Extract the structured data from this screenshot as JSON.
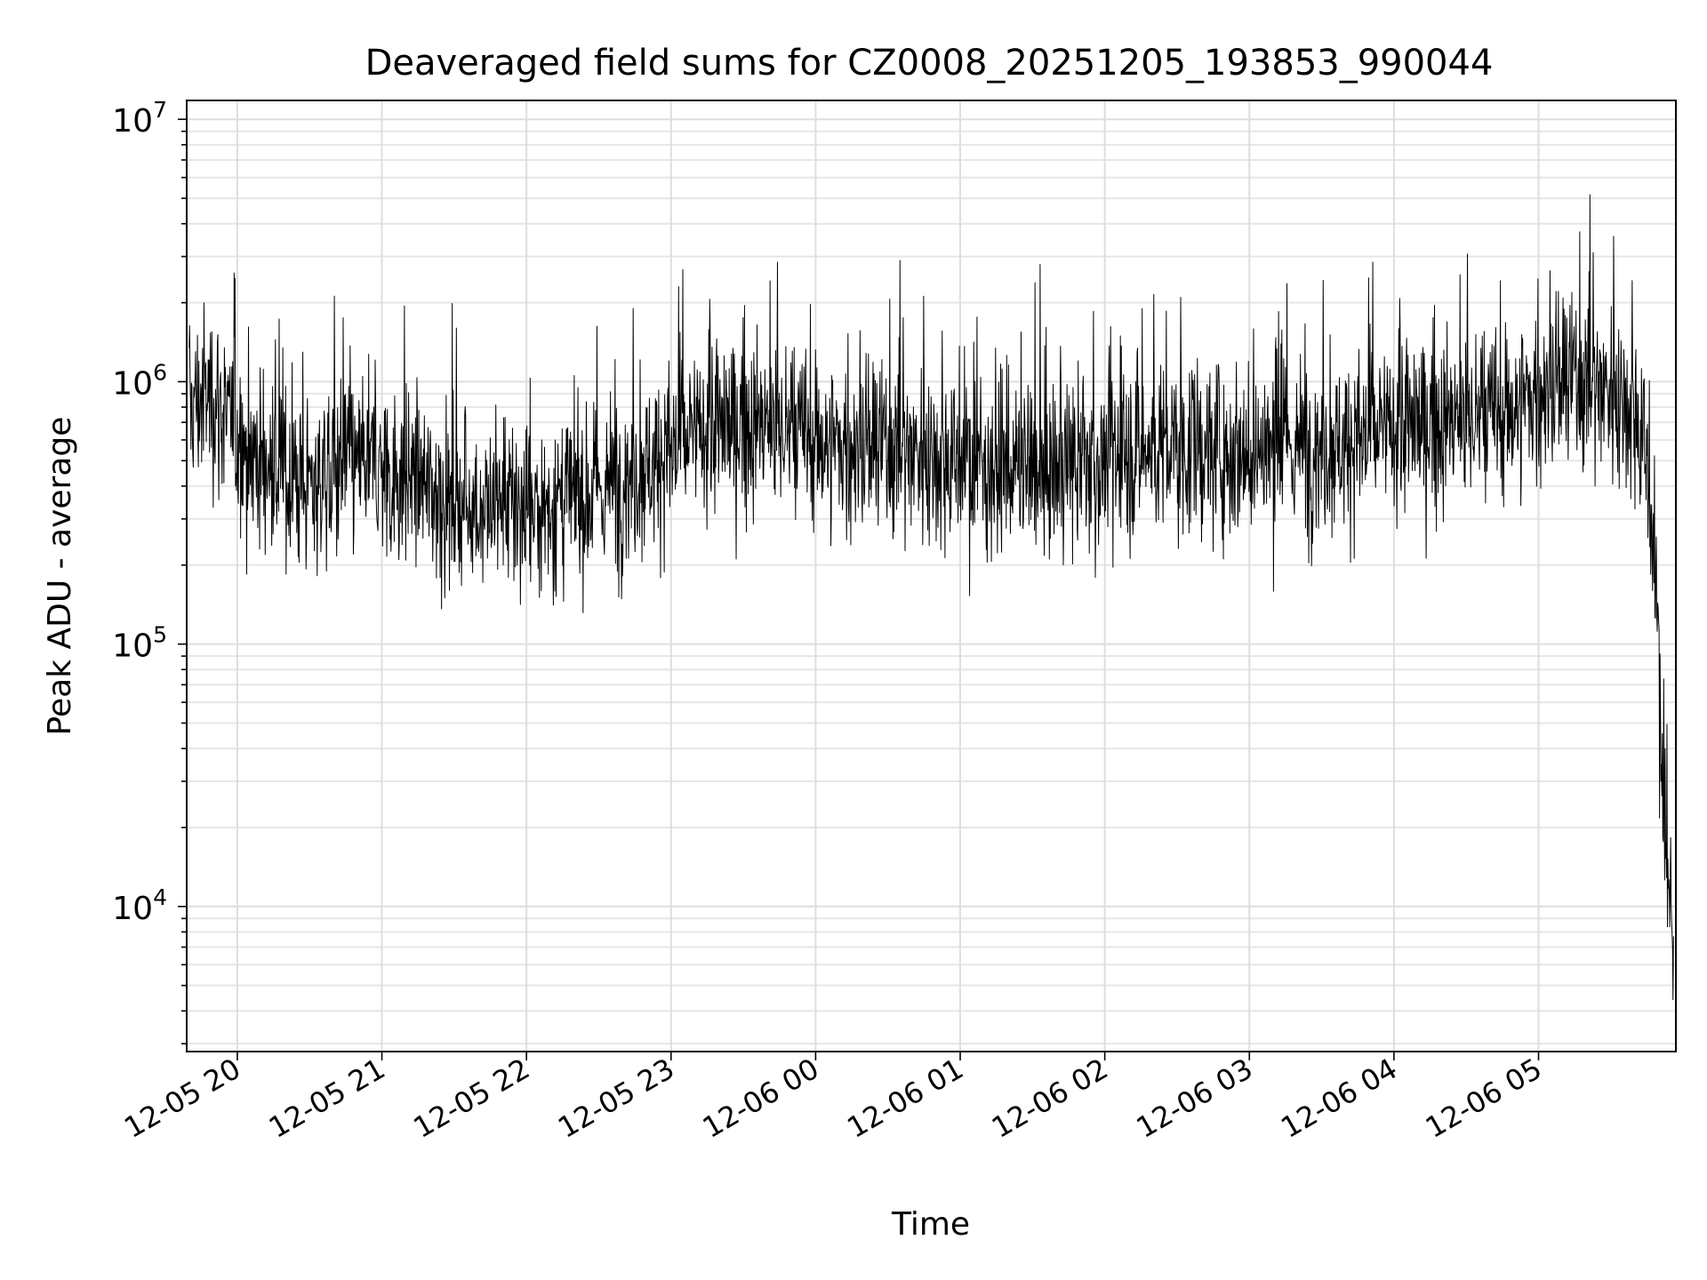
{
  "chart_data": {
    "type": "line",
    "title": "Deaveraged field sums for CZ0008_20251205_193853_990044",
    "xlabel": "Time",
    "ylabel": "Peak ADU - average",
    "yscale": "log",
    "ylim": [
      2800,
      11800000
    ],
    "xlim": [
      "2025-12-05 19:39",
      "2025-12-06 05:57"
    ],
    "grid": true,
    "line_color": "#000000",
    "x_ticks": [
      {
        "time": "2025-12-05 20:00",
        "label": "12-05 20"
      },
      {
        "time": "2025-12-05 21:00",
        "label": "12-05 21"
      },
      {
        "time": "2025-12-05 22:00",
        "label": "12-05 22"
      },
      {
        "time": "2025-12-05 23:00",
        "label": "12-05 23"
      },
      {
        "time": "2025-12-06 00:00",
        "label": "12-06 00"
      },
      {
        "time": "2025-12-06 01:00",
        "label": "12-06 01"
      },
      {
        "time": "2025-12-06 02:00",
        "label": "12-06 02"
      },
      {
        "time": "2025-12-06 03:00",
        "label": "12-06 03"
      },
      {
        "time": "2025-12-06 04:00",
        "label": "12-06 04"
      },
      {
        "time": "2025-12-06 05:00",
        "label": "12-06 05"
      }
    ],
    "y_ticks": [
      {
        "value": 10000,
        "base": "10",
        "exp": "4"
      },
      {
        "value": 100000,
        "base": "10",
        "exp": "5"
      },
      {
        "value": 1000000,
        "base": "10",
        "exp": "6"
      },
      {
        "value": 10000000,
        "base": "10",
        "exp": "7"
      }
    ],
    "series": [
      {
        "x": [
          "2025-12-05 19:40",
          "2025-12-05 19:50",
          "2025-12-05 20:00",
          "2025-12-05 20:15",
          "2025-12-05 20:30",
          "2025-12-05 20:45",
          "2025-12-05 21:00",
          "2025-12-05 21:15",
          "2025-12-05 21:30",
          "2025-12-05 21:45",
          "2025-12-05 22:00",
          "2025-12-05 22:15",
          "2025-12-05 22:30",
          "2025-12-05 22:45",
          "2025-12-05 23:00",
          "2025-12-05 23:15",
          "2025-12-05 23:30",
          "2025-12-05 23:45",
          "2025-12-06 00:00",
          "2025-12-06 00:15",
          "2025-12-06 00:30",
          "2025-12-06 00:45",
          "2025-12-06 01:00",
          "2025-12-06 01:15",
          "2025-12-06 01:30",
          "2025-12-06 01:45",
          "2025-12-06 02:00",
          "2025-12-06 02:15",
          "2025-12-06 02:30",
          "2025-12-06 02:45",
          "2025-12-06 03:00",
          "2025-12-06 03:15",
          "2025-12-06 03:30",
          "2025-12-06 03:45",
          "2025-12-06 04:00",
          "2025-12-06 04:15",
          "2025-12-06 04:30",
          "2025-12-06 04:45",
          "2025-12-06 05:00",
          "2025-12-06 05:15",
          "2025-12-06 05:30",
          "2025-12-06 05:40",
          "2025-12-06 05:45",
          "2025-12-06 05:48",
          "2025-12-06 05:50",
          "2025-12-06 05:52",
          "2025-12-06 05:54",
          "2025-12-06 05:56"
        ],
        "y": [
          800000,
          900000,
          600000,
          450000,
          400000,
          500000,
          450000,
          420000,
          350000,
          330000,
          320000,
          350000,
          380000,
          450000,
          550000,
          650000,
          700000,
          650000,
          600000,
          550000,
          550000,
          550000,
          500000,
          480000,
          450000,
          470000,
          500000,
          550000,
          550000,
          550000,
          550000,
          550000,
          570000,
          600000,
          650000,
          700000,
          700000,
          750000,
          900000,
          1000000,
          950000,
          800000,
          500000,
          200000,
          80000,
          25000,
          10000,
          7000
        ]
      }
    ]
  }
}
